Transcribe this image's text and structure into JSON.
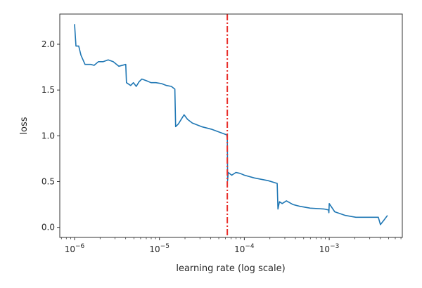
{
  "chart_data": {
    "type": "line",
    "title": "",
    "xlabel": "learning rate (log scale)",
    "ylabel": "loss",
    "xscale": "log",
    "xlim": [
      6.7e-07,
      0.00726
    ],
    "ylim": [
      -0.11,
      2.33
    ],
    "grid": false,
    "line_color": "#1f77b4",
    "marker_line": {
      "x": 6.3e-05,
      "style": "dash-dot",
      "color": "#e8302c"
    },
    "xticks": [
      {
        "value": 1e-06,
        "base": "10",
        "exp": "−6"
      },
      {
        "value": 1e-05,
        "base": "10",
        "exp": "−5"
      },
      {
        "value": 0.0001,
        "base": "10",
        "exp": "−4"
      },
      {
        "value": 0.001,
        "base": "10",
        "exp": "−3"
      }
    ],
    "yticks": [
      {
        "value": 0.0,
        "label": "0.0"
      },
      {
        "value": 0.5,
        "label": "0.5"
      },
      {
        "value": 1.0,
        "label": "1.0"
      },
      {
        "value": 1.5,
        "label": "1.5"
      },
      {
        "value": 2.0,
        "label": "2.0"
      }
    ],
    "series": [
      {
        "x": [
          1e-06,
          1.04e-06,
          1.12e-06,
          1.19e-06,
          1.33e-06,
          1.55e-06,
          1.7e-06,
          1.91e-06,
          2.18e-06,
          2.49e-06,
          2.85e-06,
          3.32e-06,
          4.01e-06,
          4.09e-06,
          4.58e-06,
          4.94e-06,
          5.33e-06,
          5.75e-06,
          6.21e-06,
          7.1e-06,
          7.96e-06,
          9.1e-06,
          1.06e-05,
          1.21e-05,
          1.38e-05,
          1.52e-05,
          1.55e-05,
          1.67e-05,
          1.95e-05,
          2.14e-05,
          2.44e-05,
          3.13e-05,
          4.17e-05,
          6.21e-05,
          6.3e-05,
          6.35e-05,
          6.46e-05,
          7.1e-05,
          7.96e-05,
          8.91e-05,
          0.0001,
          0.000131,
          0.000191,
          0.000244,
          0.000249,
          0.000259,
          0.000279,
          0.000313,
          0.000372,
          0.00045,
          0.000598,
          0.000875,
          0.000982,
          0.00099,
          0.001,
          0.00116,
          0.00155,
          0.00206,
          0.00274,
          0.00379,
          0.00401,
          0.00442,
          0.00485
        ],
        "y": [
          2.22,
          1.98,
          1.98,
          1.88,
          1.78,
          1.78,
          1.77,
          1.81,
          1.81,
          1.83,
          1.81,
          1.76,
          1.78,
          1.58,
          1.55,
          1.58,
          1.54,
          1.59,
          1.62,
          1.6,
          1.58,
          1.58,
          1.57,
          1.55,
          1.54,
          1.51,
          1.1,
          1.13,
          1.23,
          1.18,
          1.14,
          1.1,
          1.07,
          1.01,
          0.96,
          0.51,
          0.6,
          0.57,
          0.6,
          0.59,
          0.57,
          0.54,
          0.51,
          0.48,
          0.2,
          0.28,
          0.26,
          0.29,
          0.25,
          0.23,
          0.21,
          0.2,
          0.19,
          0.16,
          0.26,
          0.17,
          0.13,
          0.11,
          0.11,
          0.11,
          0.03,
          0.08,
          0.13
        ]
      }
    ]
  }
}
